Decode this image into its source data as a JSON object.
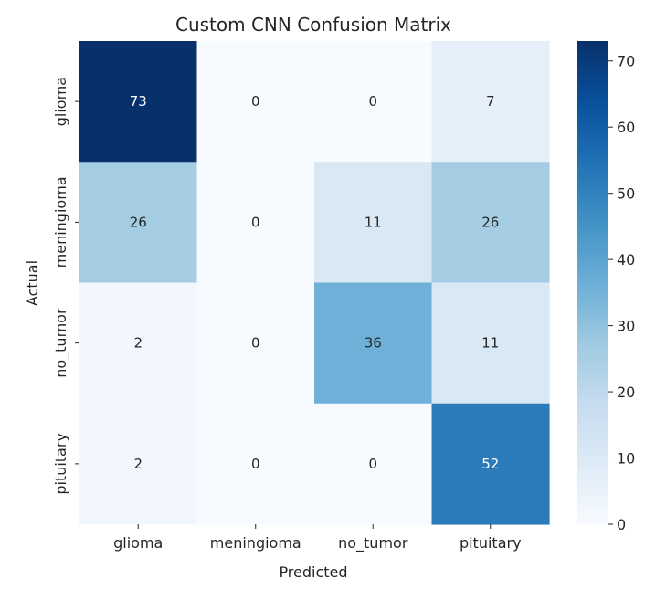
{
  "chart_data": {
    "type": "heatmap",
    "title": "Custom CNN Confusion Matrix",
    "xlabel": "Predicted",
    "ylabel": "Actual",
    "x_categories": [
      "glioma",
      "meningioma",
      "no_tumor",
      "pituitary"
    ],
    "y_categories": [
      "glioma",
      "meningioma",
      "no_tumor",
      "pituitary"
    ],
    "values": [
      [
        73,
        0,
        0,
        7
      ],
      [
        26,
        0,
        11,
        26
      ],
      [
        2,
        0,
        36,
        11
      ],
      [
        2,
        0,
        0,
        52
      ]
    ],
    "value_range": [
      0,
      73
    ],
    "colormap": "Blues",
    "colorbar": {
      "ticks": [
        0,
        10,
        20,
        30,
        40,
        50,
        60,
        70
      ],
      "tick_labels": [
        "0",
        "10",
        "20",
        "30",
        "40",
        "50",
        "60",
        "70"
      ]
    },
    "annotation_colors": {
      "dark_text": "#262626",
      "light_text": "#ffffff"
    }
  }
}
